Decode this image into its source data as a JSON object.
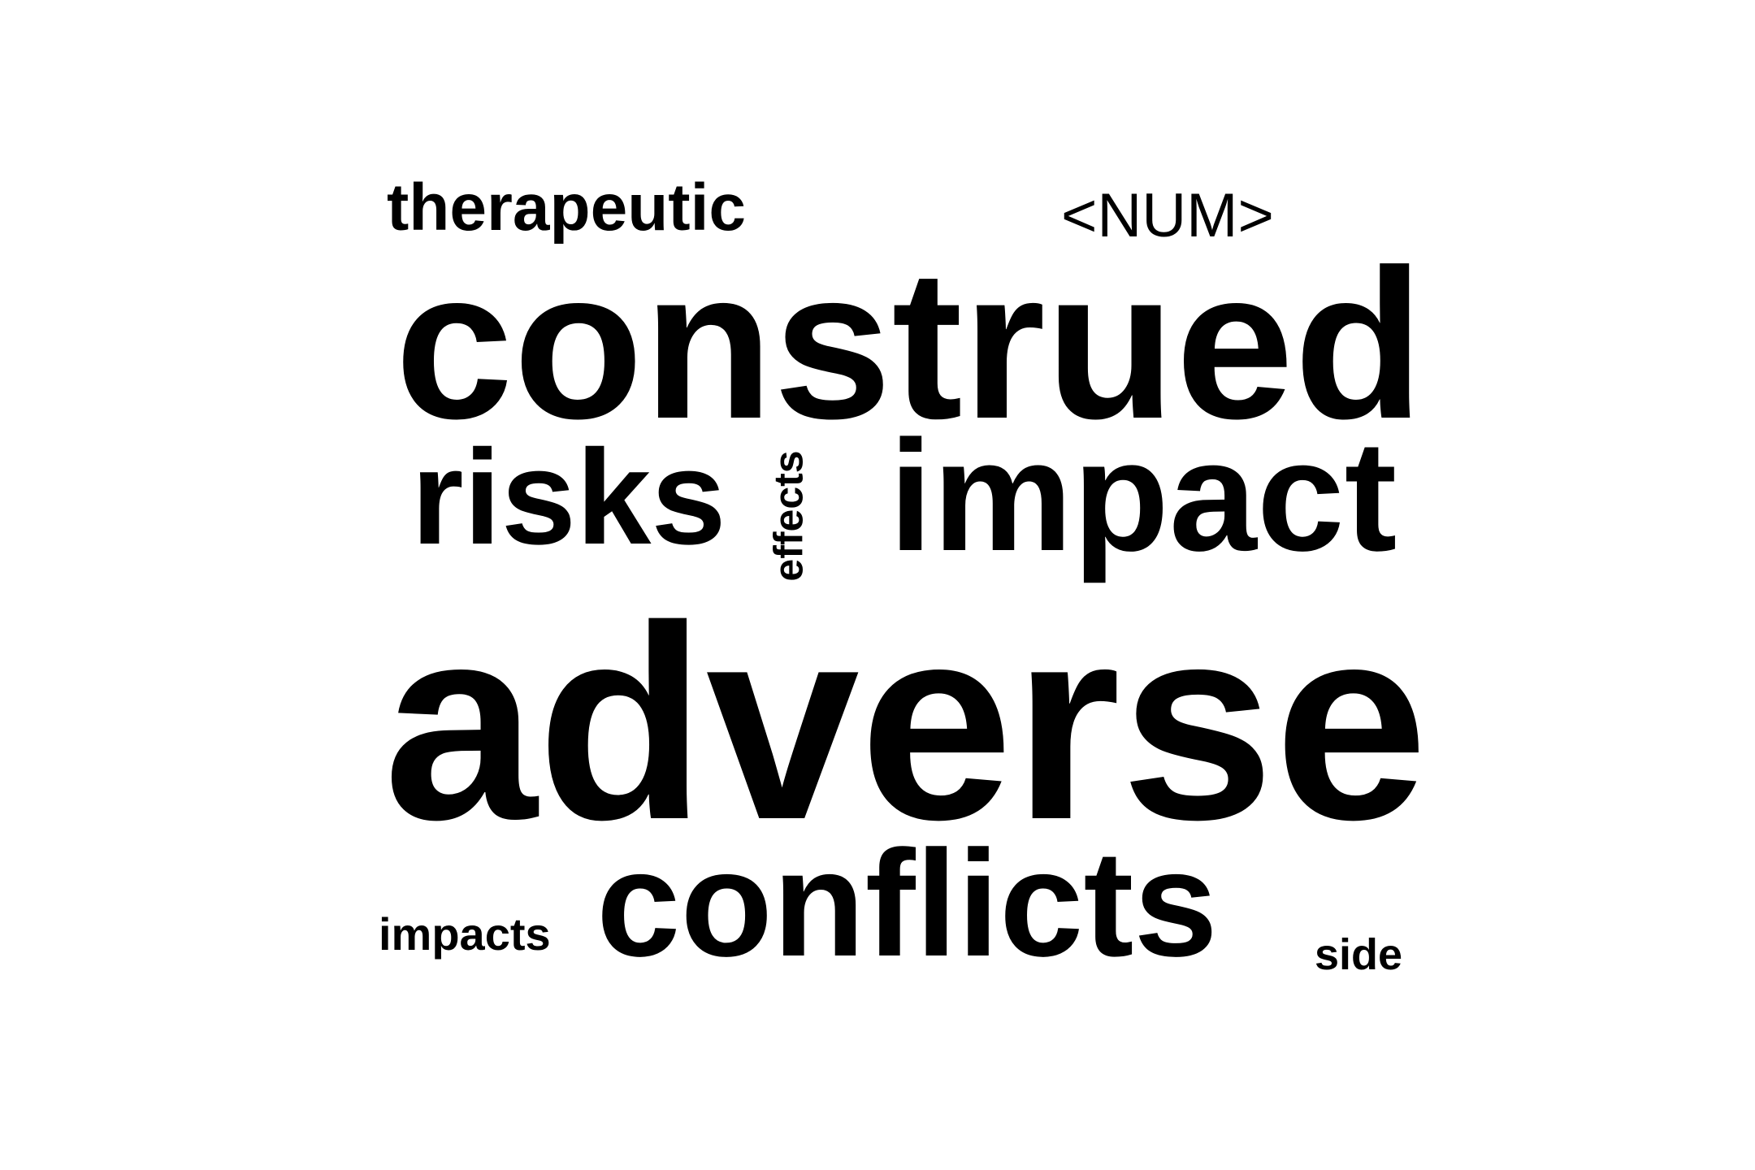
{
  "words": {
    "therapeutic": "therapeutic",
    "num": "<NUM>",
    "construed": "construed",
    "risks": "risks",
    "effects": "effects",
    "impact": "impact",
    "adverse": "adverse",
    "impacts": "impacts",
    "conflicts": "conflicts",
    "side": "side"
  },
  "colors": {
    "background": "#ffffff",
    "text": "#000000"
  }
}
